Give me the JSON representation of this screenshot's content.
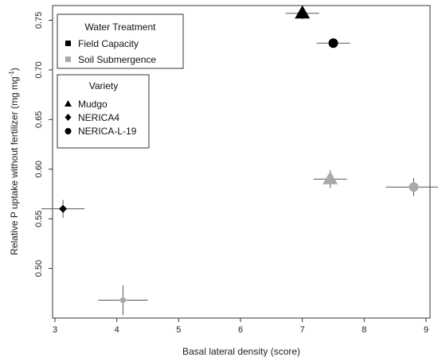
{
  "chart_data": {
    "type": "scatter",
    "xlabel": "Basal lateral density (score)",
    "ylabel": "Relative P uptake without fertilizer (mg mg",
    "ylabel_sup": "-1",
    "ylabel_close": ")",
    "xlim": [
      3,
      9
    ],
    "ylim": [
      0.45,
      0.76
    ],
    "xticks": [
      "3",
      "4",
      "5",
      "6",
      "7",
      "8",
      "9"
    ],
    "yticks": [
      "0.50",
      "0.55",
      "0.60",
      "0.65",
      "0.70",
      "0.75"
    ],
    "grid": false,
    "colors": {
      "field_capacity": "#000000",
      "soil_submergence": "#a9a9a9",
      "error_bar": "#555555"
    },
    "points": [
      {
        "variety": "Mudgo",
        "treatment": "Field Capacity",
        "marker": "triangle",
        "x": 7.0,
        "y": 0.757,
        "x_err": 0.27,
        "y_err": 0.006
      },
      {
        "variety": "NERICA-L-19",
        "treatment": "Field Capacity",
        "marker": "circle",
        "x": 7.5,
        "y": 0.727,
        "x_err": 0.27,
        "y_err": 0.002
      },
      {
        "variety": "NERICA4",
        "treatment": "Field Capacity",
        "marker": "diamond",
        "x": 3.13,
        "y": 0.56,
        "x_err": 0.35,
        "y_err": 0.009
      },
      {
        "variety": "Mudgo",
        "treatment": "Soil Submergence",
        "marker": "triangle",
        "x": 7.45,
        "y": 0.59,
        "x_err": 0.27,
        "y_err": 0.009
      },
      {
        "variety": "NERICA-L-19",
        "treatment": "Soil Submergence",
        "marker": "circle",
        "x": 8.8,
        "y": 0.582,
        "x_err": 0.45,
        "y_err": 0.009
      },
      {
        "variety": "NERICA4",
        "treatment": "Soil Submergence",
        "marker": "diamond",
        "x": 4.1,
        "y": 0.468,
        "x_err": 0.4,
        "y_err": 0.015
      }
    ]
  },
  "legend_treatment": {
    "title": "Water Treatment",
    "items": [
      {
        "label": "Field Capacity",
        "marker": "square",
        "color": "#000000"
      },
      {
        "label": "Soil Submergence",
        "marker": "square",
        "color": "#a9a9a9"
      }
    ]
  },
  "legend_variety": {
    "title": "Variety",
    "items": [
      {
        "label": "Mudgo",
        "marker": "triangle",
        "color": "#000000"
      },
      {
        "label": "NERICA4",
        "marker": "diamond",
        "color": "#000000"
      },
      {
        "label": "NERICA-L-19",
        "marker": "circle",
        "color": "#000000"
      }
    ]
  }
}
